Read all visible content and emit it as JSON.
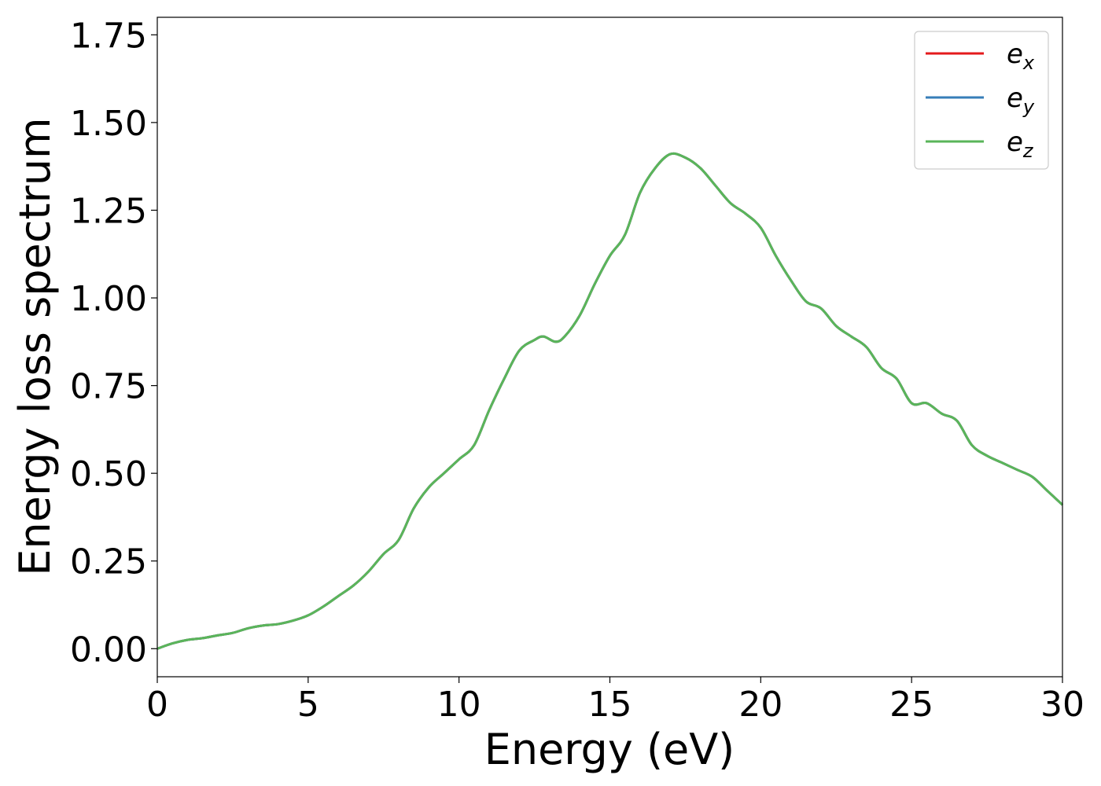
{
  "chart_data": {
    "type": "line",
    "title": "",
    "xlabel": "Energy (eV)",
    "ylabel": "Energy loss spectrum",
    "xlim": [
      0,
      30
    ],
    "ylim": [
      -0.08,
      1.8
    ],
    "xticks": [
      0,
      5,
      10,
      15,
      20,
      25,
      30
    ],
    "xtick_labels": [
      "0",
      "5",
      "10",
      "15",
      "20",
      "25",
      "30"
    ],
    "yticks": [
      0,
      0.25,
      0.5,
      0.75,
      1.0,
      1.25,
      1.5,
      1.75
    ],
    "ytick_labels": [
      "0.00",
      "0.25",
      "0.50",
      "0.75",
      "1.00",
      "1.25",
      "1.50",
      "1.75"
    ],
    "grid": false,
    "legend_position": "top-right",
    "x": [
      0,
      0.5,
      1.0,
      1.5,
      2.0,
      2.5,
      3.0,
      3.5,
      4.0,
      4.5,
      5.0,
      5.5,
      6.0,
      6.5,
      7.0,
      7.5,
      8.0,
      8.5,
      9.0,
      9.5,
      10.0,
      10.5,
      11.0,
      11.5,
      12.0,
      12.5,
      12.8,
      13.2,
      13.5,
      14.0,
      14.5,
      15.0,
      15.5,
      16.0,
      16.5,
      17.0,
      17.5,
      18.0,
      18.5,
      19.0,
      19.5,
      20.0,
      20.5,
      21.0,
      21.5,
      22.0,
      22.5,
      23.0,
      23.5,
      24.0,
      24.5,
      25.0,
      25.5,
      26.0,
      26.5,
      27.0,
      27.5,
      28.0,
      28.5,
      29.0,
      29.5,
      30.0
    ],
    "series": [
      {
        "name": "e",
        "subscript": "x",
        "color": "#e41a1c",
        "values": [
          0.0,
          0.015,
          0.025,
          0.03,
          0.038,
          0.045,
          0.058,
          0.066,
          0.07,
          0.08,
          0.095,
          0.12,
          0.15,
          0.18,
          0.22,
          0.27,
          0.31,
          0.4,
          0.46,
          0.5,
          0.54,
          0.58,
          0.68,
          0.77,
          0.85,
          0.88,
          0.89,
          0.875,
          0.89,
          0.95,
          1.04,
          1.12,
          1.18,
          1.3,
          1.37,
          1.41,
          1.4,
          1.37,
          1.32,
          1.27,
          1.24,
          1.2,
          1.12,
          1.05,
          0.99,
          0.97,
          0.92,
          0.89,
          0.86,
          0.8,
          0.77,
          0.7,
          0.7,
          0.67,
          0.65,
          0.58,
          0.55,
          0.53,
          0.51,
          0.49,
          0.45,
          0.41
        ]
      },
      {
        "name": "e",
        "subscript": "y",
        "color": "#377eb8",
        "values": [
          0.0,
          0.015,
          0.025,
          0.03,
          0.038,
          0.045,
          0.058,
          0.066,
          0.07,
          0.08,
          0.095,
          0.12,
          0.15,
          0.18,
          0.22,
          0.27,
          0.31,
          0.4,
          0.46,
          0.5,
          0.54,
          0.58,
          0.68,
          0.77,
          0.85,
          0.88,
          0.89,
          0.875,
          0.89,
          0.95,
          1.04,
          1.12,
          1.18,
          1.3,
          1.37,
          1.41,
          1.4,
          1.37,
          1.32,
          1.27,
          1.24,
          1.2,
          1.12,
          1.05,
          0.99,
          0.97,
          0.92,
          0.89,
          0.86,
          0.8,
          0.77,
          0.7,
          0.7,
          0.67,
          0.65,
          0.58,
          0.55,
          0.53,
          0.51,
          0.49,
          0.45,
          0.41
        ]
      },
      {
        "name": "e",
        "subscript": "z",
        "color": "#5ab55a",
        "values": [
          0.0,
          0.015,
          0.025,
          0.03,
          0.038,
          0.045,
          0.058,
          0.066,
          0.07,
          0.08,
          0.095,
          0.12,
          0.15,
          0.18,
          0.22,
          0.27,
          0.31,
          0.4,
          0.46,
          0.5,
          0.54,
          0.58,
          0.68,
          0.77,
          0.85,
          0.88,
          0.89,
          0.875,
          0.89,
          0.95,
          1.04,
          1.12,
          1.18,
          1.3,
          1.37,
          1.41,
          1.4,
          1.37,
          1.32,
          1.27,
          1.24,
          1.2,
          1.12,
          1.05,
          0.99,
          0.97,
          0.92,
          0.89,
          0.86,
          0.8,
          0.77,
          0.7,
          0.7,
          0.67,
          0.65,
          0.58,
          0.55,
          0.53,
          0.51,
          0.49,
          0.45,
          0.41
        ]
      }
    ]
  }
}
